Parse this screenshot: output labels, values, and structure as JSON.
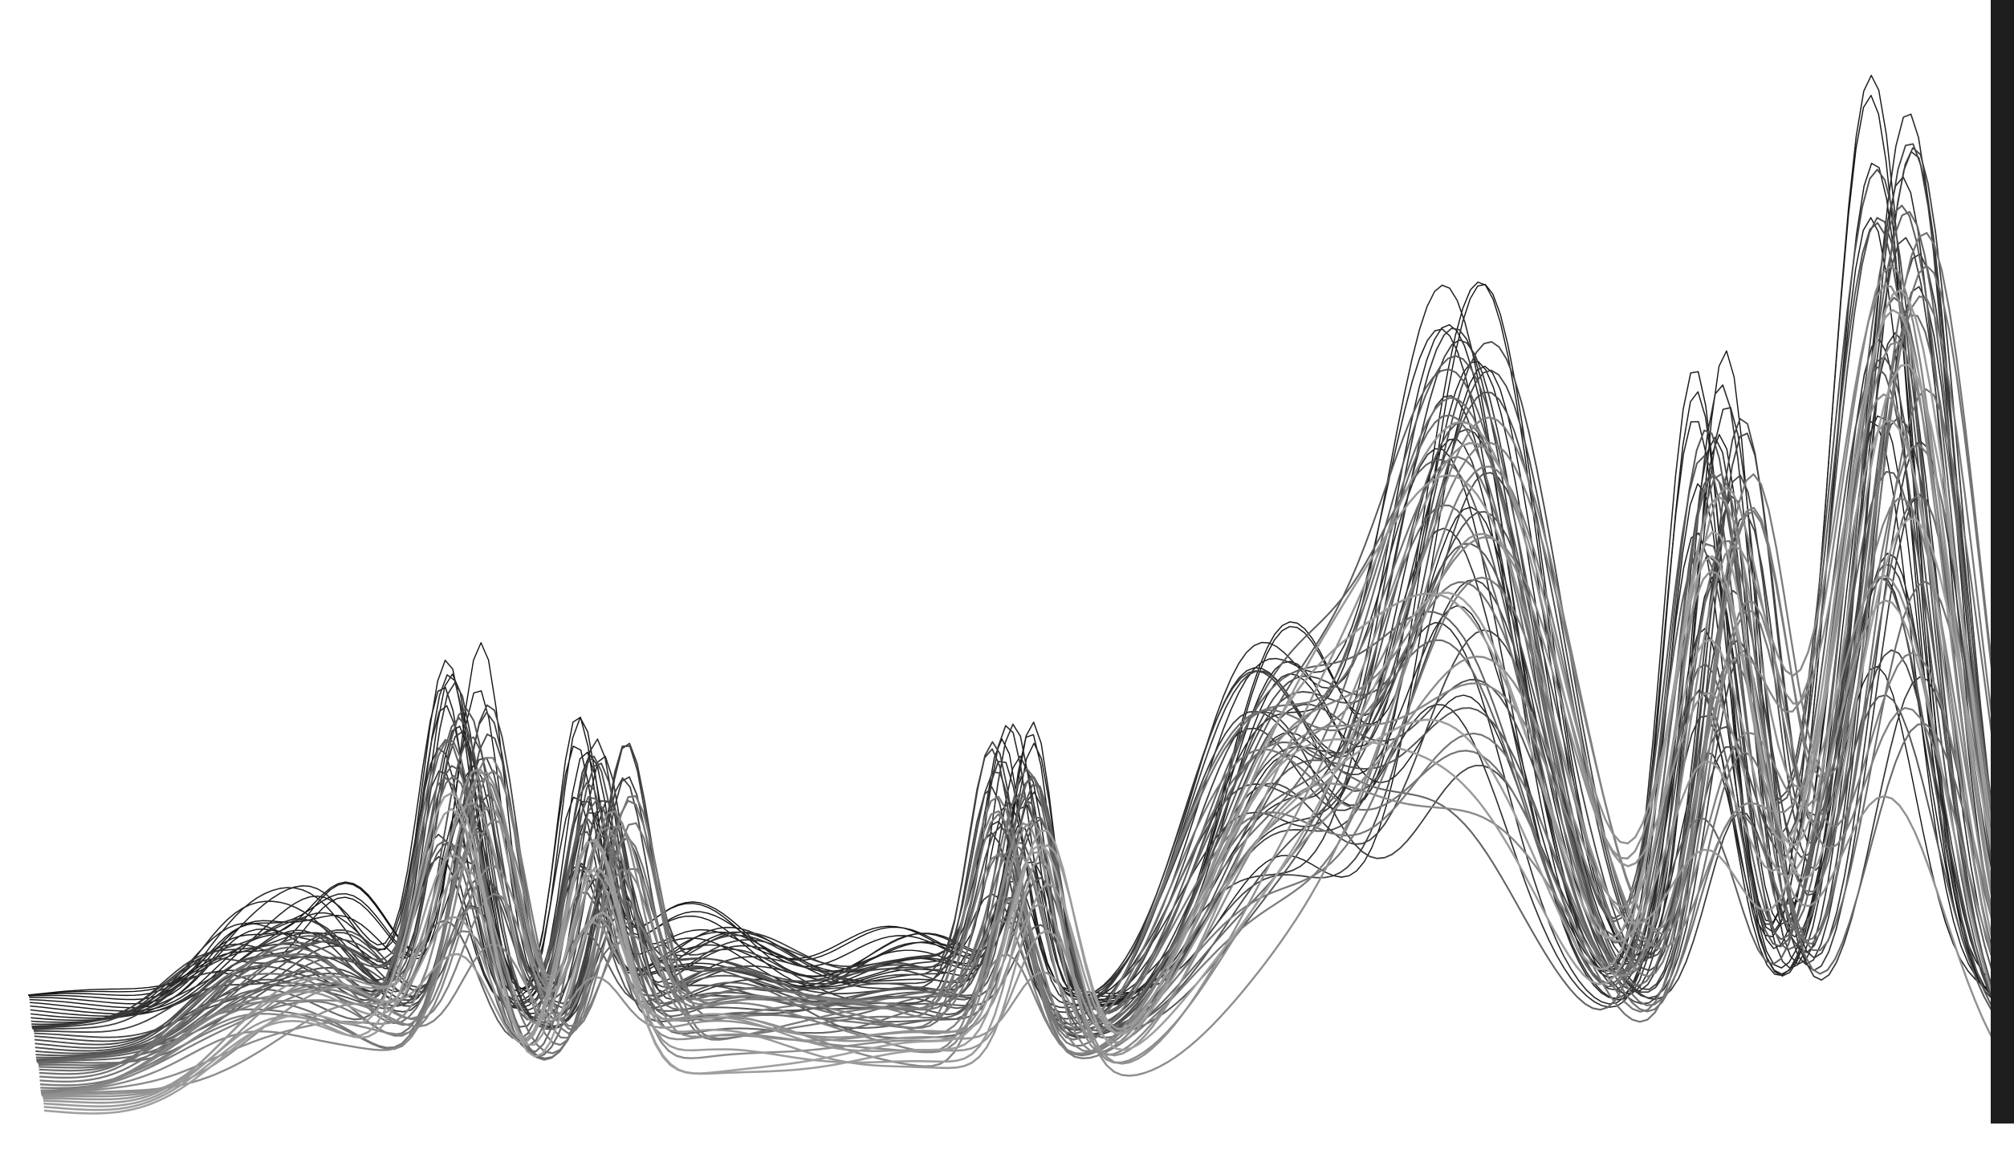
{
  "image": {
    "subject": "wireframe-ridgeline",
    "colors": {
      "background": "#ffffff",
      "line_dark": "#111111",
      "line_mid": "#555555",
      "line_light": "#a0a0a0",
      "edge_bar": "#1e1e1e"
    },
    "ridge_count": 60,
    "peaks": [
      {
        "position": 0.1,
        "height": 0.08,
        "width": 0.02
      },
      {
        "position": 0.15,
        "height": 0.12,
        "width": 0.022
      },
      {
        "position": 0.22,
        "height": 0.38,
        "width": 0.012
      },
      {
        "position": 0.29,
        "height": 0.3,
        "width": 0.01
      },
      {
        "position": 0.35,
        "height": 0.1,
        "width": 0.03
      },
      {
        "position": 0.45,
        "height": 0.08,
        "width": 0.03
      },
      {
        "position": 0.5,
        "height": 0.3,
        "width": 0.01
      },
      {
        "position": 0.63,
        "height": 0.4,
        "width": 0.03
      },
      {
        "position": 0.73,
        "height": 0.78,
        "width": 0.03
      },
      {
        "position": 0.86,
        "height": 0.7,
        "width": 0.015
      },
      {
        "position": 0.95,
        "height": 1.0,
        "width": 0.02
      }
    ]
  }
}
